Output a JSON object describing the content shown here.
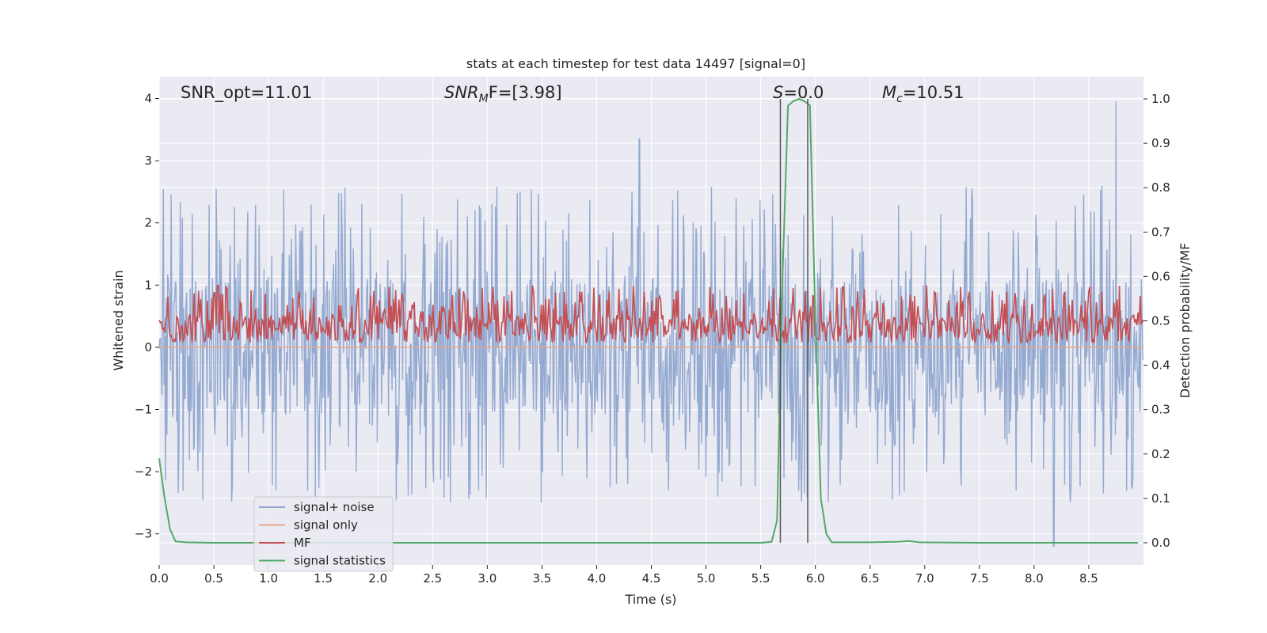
{
  "chart_data": {
    "type": "line",
    "title": "stats at each timestep for test data 14497 [signal=0]",
    "xlabel": "Time (s)",
    "ylabel_left": "Whitened strain",
    "ylabel_right": "Detection probability/MF",
    "xlim": [
      0.0,
      9.0
    ],
    "ylim_left": [
      -3.5,
      4.35
    ],
    "ylim_right": [
      -0.05,
      1.05
    ],
    "x_ticks": [
      "0.0",
      "0.5",
      "1.0",
      "1.5",
      "2.0",
      "2.5",
      "3.0",
      "3.5",
      "4.0",
      "4.5",
      "5.0",
      "5.5",
      "6.0",
      "6.5",
      "7.0",
      "7.5",
      "8.0",
      "8.5"
    ],
    "y_left_ticks": [
      "4",
      "3",
      "2",
      "1",
      "0",
      "−1",
      "−2",
      "−3"
    ],
    "y_right_ticks": [
      "1.0",
      "0.9",
      "0.8",
      "0.7",
      "0.6",
      "0.5",
      "0.4",
      "0.3",
      "0.2",
      "0.1",
      "0.0"
    ],
    "grid": true,
    "legend_position": "lower-left",
    "annotations": {
      "snr_opt": "SNR_opt=11.01",
      "snr_mf_main": "SNR",
      "snr_mf_sub": "M",
      "snr_mf_rest": "F=[3.98]",
      "s_main": "S",
      "s_rest": "=0.0",
      "mc_main": "M",
      "mc_sub": "c",
      "mc_rest": "=10.51"
    },
    "colors": {
      "signal_noise": "#8fa6cf",
      "signal_only": "#e8a68a",
      "mf": "#c44e52",
      "signal_statistics": "#55a868",
      "vertical_lines": "#555555",
      "plot_background": "#eaeaf2",
      "grid": "#ffffff"
    },
    "series": [
      {
        "name": "signal+ noise",
        "axis": "left",
        "kind": "noise",
        "mean": 0.0,
        "typical_amplitude": 1.0,
        "peak_upper": 3.95,
        "peak_lower": -3.2
      },
      {
        "name": "signal only",
        "axis": "left",
        "values": [
          0.0,
          0.0
        ]
      },
      {
        "name": "MF",
        "axis": "right",
        "kind": "noise",
        "baseline": 0.5,
        "range": [
          0.45,
          0.58
        ]
      },
      {
        "name": "signal statistics",
        "axis": "right",
        "x": [
          0.0,
          0.05,
          0.1,
          0.15,
          0.25,
          0.5,
          1.0,
          2.0,
          3.0,
          4.0,
          5.0,
          5.5,
          5.6,
          5.65,
          5.7,
          5.75,
          5.8,
          5.85,
          5.9,
          5.95,
          6.0,
          6.05,
          6.1,
          6.15,
          6.5,
          6.75,
          6.85,
          6.95,
          7.5,
          8.0,
          8.5,
          8.95
        ],
        "y": [
          0.19,
          0.1,
          0.03,
          0.003,
          0.001,
          0.0,
          0.0,
          0.0,
          0.0,
          0.0,
          0.0,
          0.0,
          0.002,
          0.05,
          0.6,
          0.985,
          0.995,
          1.0,
          0.995,
          0.985,
          0.5,
          0.1,
          0.02,
          0.001,
          0.001,
          0.002,
          0.004,
          0.001,
          0.0,
          0.0,
          0.0,
          0.0
        ]
      }
    ],
    "vertical_markers_x": [
      5.68,
      5.93
    ]
  }
}
